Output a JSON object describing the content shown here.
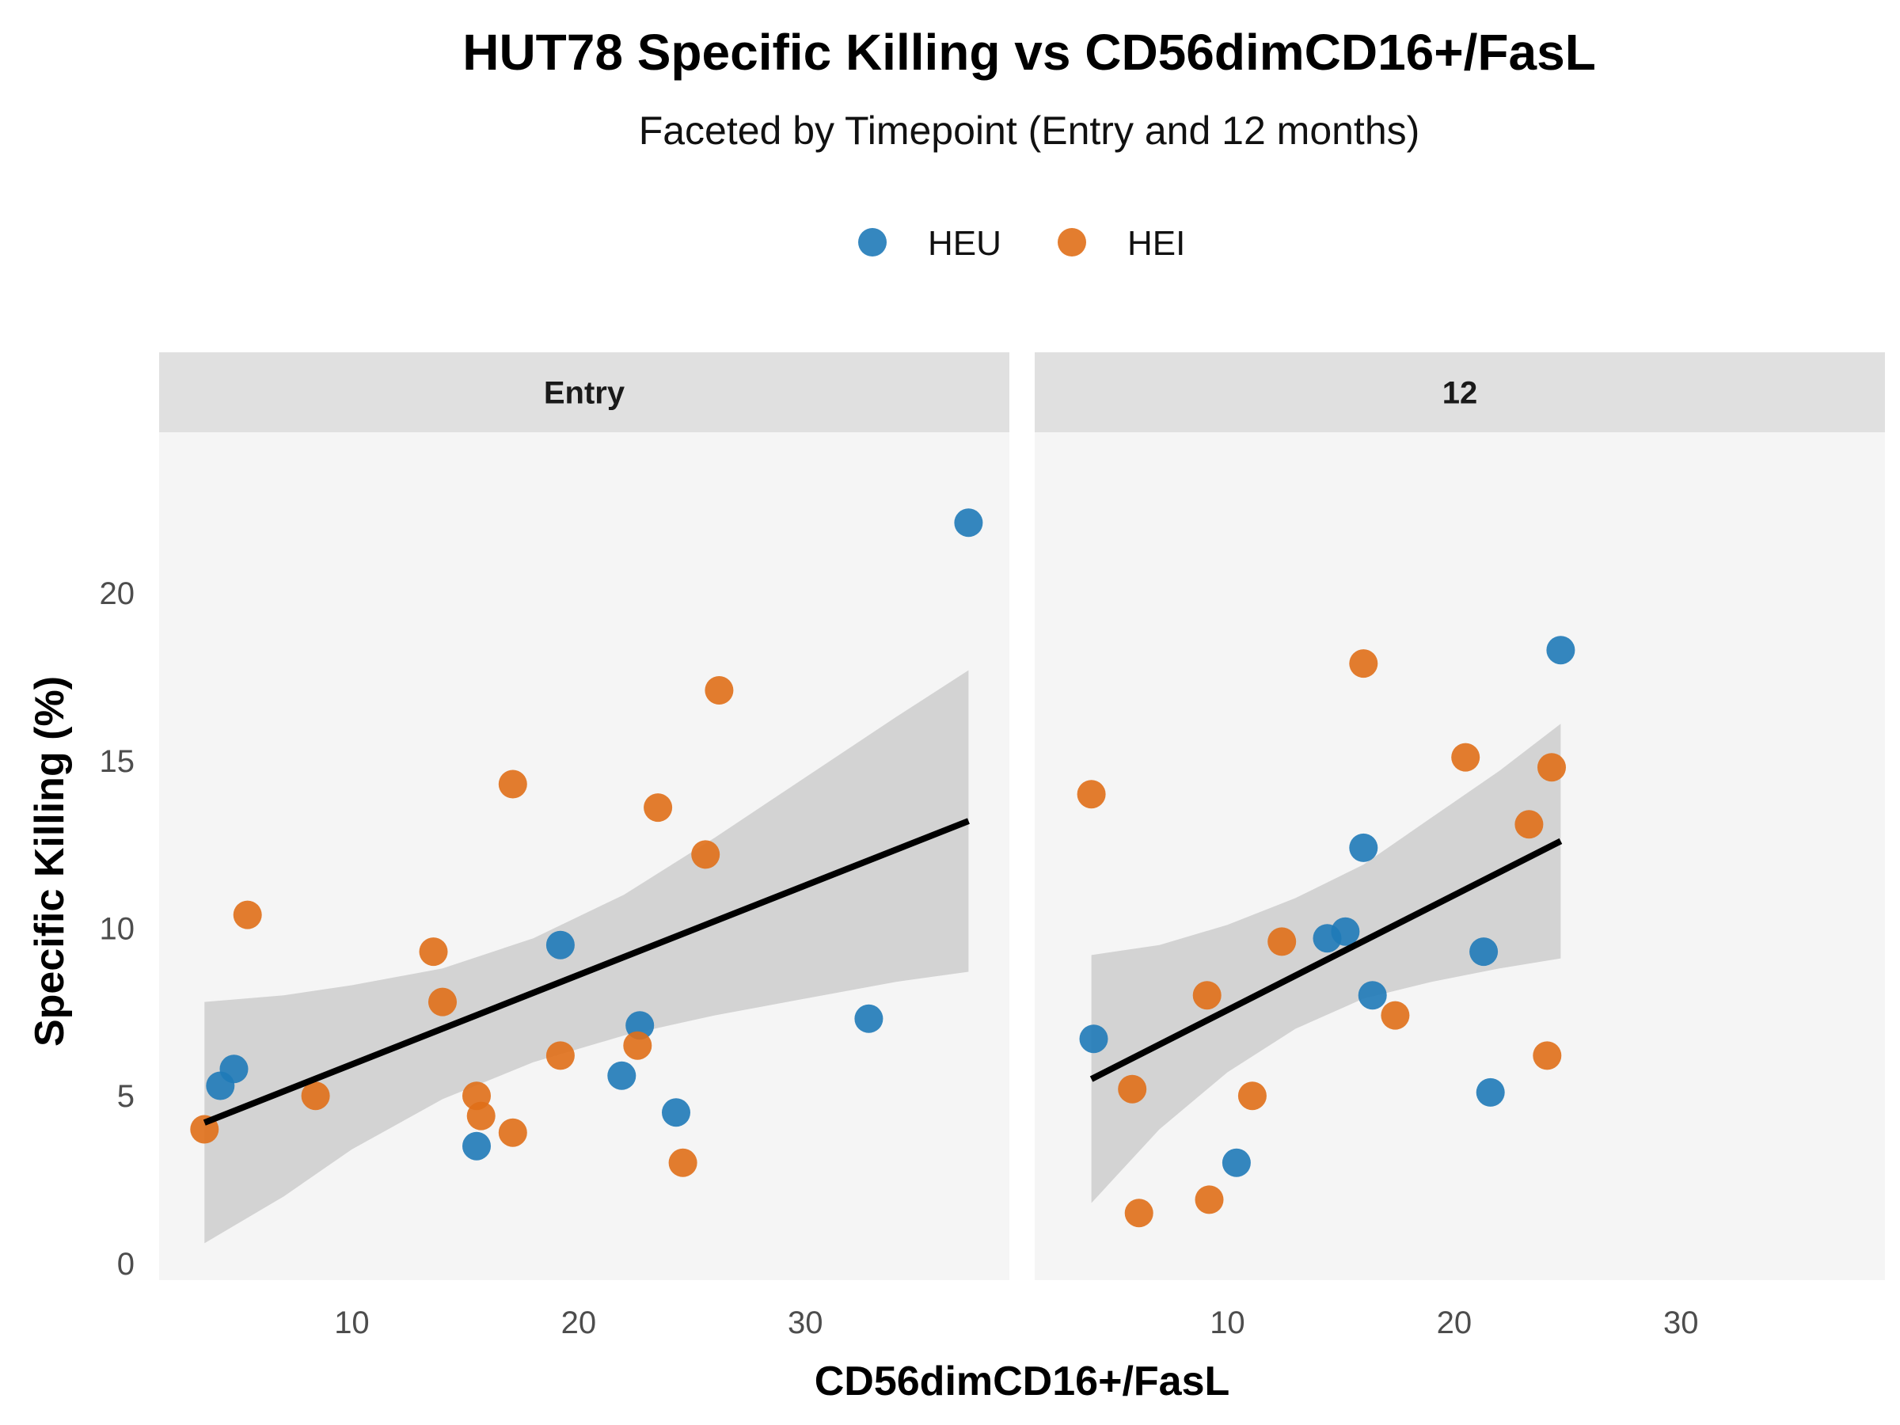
{
  "chart_data": {
    "type": "scatter",
    "title": "HUT78 Specific Killing vs CD56dimCD16+/FasL",
    "subtitle": "Faceted by Timepoint (Entry and 12 months)",
    "xlabel": "CD56dimCD16+/FasL",
    "ylabel": "Specific Killing (%)",
    "xlim": [
      1.5,
      39
    ],
    "ylim": [
      -0.5,
      24.8
    ],
    "x_ticks": [
      10,
      20,
      30
    ],
    "y_ticks": [
      0,
      5,
      10,
      15,
      20
    ],
    "legend": {
      "position": "top",
      "entries": [
        {
          "name": "HEU",
          "color": "#1f7ab8"
        },
        {
          "name": "HEI",
          "color": "#e06f18"
        }
      ]
    },
    "panel_background": "#f5f5f5",
    "strip_background": "#e0e0e0",
    "ribbon_color": "#cccccc",
    "fit_line_color": "#000000",
    "grid": false,
    "facets": [
      {
        "label": "Entry",
        "series": [
          {
            "name": "HEU",
            "points": [
              [
                4.8,
                5.8
              ],
              [
                4.2,
                5.3
              ],
              [
                15.5,
                3.5
              ],
              [
                19.2,
                9.5
              ],
              [
                21.9,
                5.6
              ],
              [
                22.7,
                7.1
              ],
              [
                24.3,
                4.5
              ],
              [
                32.8,
                7.3
              ],
              [
                37.2,
                22.1
              ]
            ]
          },
          {
            "name": "HEI",
            "points": [
              [
                3.5,
                4.0
              ],
              [
                5.4,
                10.4
              ],
              [
                8.4,
                5.0
              ],
              [
                13.6,
                9.3
              ],
              [
                14.0,
                7.8
              ],
              [
                15.5,
                5.0
              ],
              [
                15.7,
                4.4
              ],
              [
                17.1,
                14.3
              ],
              [
                17.1,
                3.9
              ],
              [
                19.2,
                6.2
              ],
              [
                22.6,
                6.5
              ],
              [
                23.5,
                13.6
              ],
              [
                24.6,
                3.0
              ],
              [
                25.6,
                12.2
              ],
              [
                26.2,
                17.1
              ]
            ]
          }
        ],
        "fit": {
          "x": [
            3.5,
            37.2
          ],
          "y": [
            4.2,
            13.2
          ]
        },
        "ribbon": {
          "x": [
            3.5,
            7.0,
            10.0,
            14.0,
            18.0,
            22.0,
            26.0,
            30.0,
            34.0,
            37.2
          ],
          "lower": [
            0.6,
            2.0,
            3.4,
            4.9,
            6.0,
            6.8,
            7.4,
            7.9,
            8.4,
            8.7
          ],
          "upper": [
            7.8,
            8.0,
            8.3,
            8.8,
            9.7,
            11.0,
            12.7,
            14.5,
            16.3,
            17.7
          ]
        }
      },
      {
        "label": "12",
        "series": [
          {
            "name": "HEU",
            "points": [
              [
                4.1,
                6.7
              ],
              [
                10.4,
                3.0
              ],
              [
                14.4,
                9.7
              ],
              [
                15.2,
                9.9
              ],
              [
                16.0,
                12.4
              ],
              [
                16.4,
                8.0
              ],
              [
                21.3,
                9.3
              ],
              [
                21.6,
                5.1
              ],
              [
                24.7,
                18.3
              ]
            ]
          },
          {
            "name": "HEI",
            "points": [
              [
                4.0,
                14.0
              ],
              [
                5.8,
                5.2
              ],
              [
                6.1,
                1.5
              ],
              [
                9.1,
                8.0
              ],
              [
                9.2,
                1.9
              ],
              [
                11.1,
                5.0
              ],
              [
                12.4,
                9.6
              ],
              [
                16.0,
                17.9
              ],
              [
                17.4,
                7.4
              ],
              [
                20.5,
                15.1
              ],
              [
                23.3,
                13.1
              ],
              [
                24.1,
                6.2
              ],
              [
                24.3,
                14.8
              ]
            ]
          }
        ],
        "fit": {
          "x": [
            4.0,
            24.7
          ],
          "y": [
            5.5,
            12.6
          ]
        },
        "ribbon": {
          "x": [
            4.0,
            7.0,
            10.0,
            13.0,
            16.0,
            19.0,
            22.0,
            24.7
          ],
          "lower": [
            1.8,
            4.0,
            5.7,
            7.0,
            7.9,
            8.4,
            8.8,
            9.1
          ],
          "upper": [
            9.2,
            9.5,
            10.1,
            10.9,
            11.9,
            13.3,
            14.7,
            16.1
          ]
        }
      }
    ]
  }
}
